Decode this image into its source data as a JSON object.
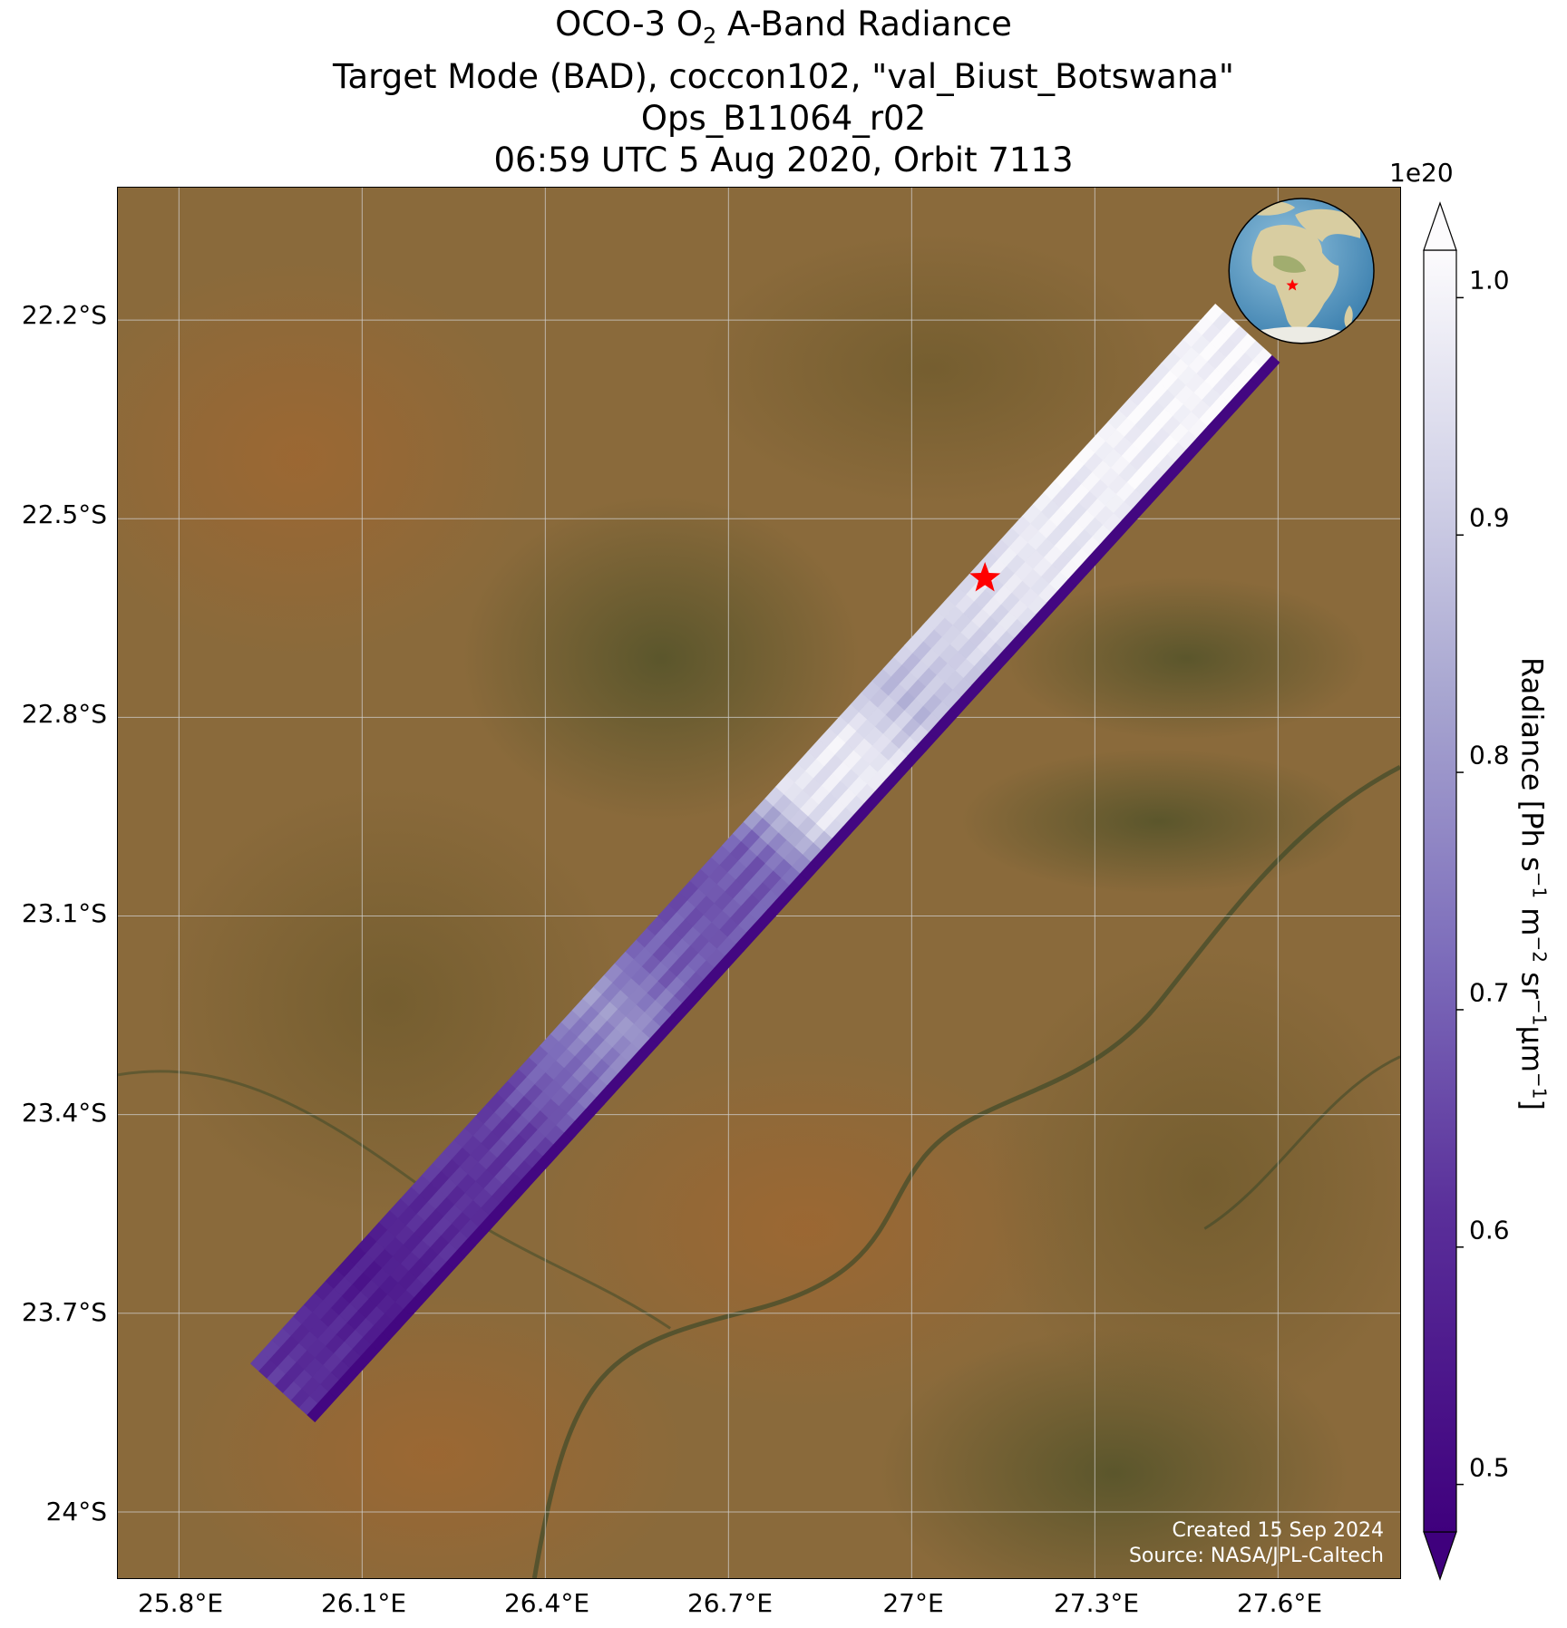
{
  "title": {
    "line1_pre": "OCO-3 O",
    "line1_sub": "2",
    "line1_post": " A-Band Radiance",
    "line2": "Target Mode (BAD), coccon102, \"val_Biust_Botswana\"",
    "line3": "Ops_B11064_r02",
    "line4": "06:59 UTC 5 Aug 2020, Orbit 7113"
  },
  "map": {
    "lat_ticks": [
      "22.2°S",
      "22.5°S",
      "22.8°S",
      "23.1°S",
      "23.4°S",
      "23.7°S",
      "24°S"
    ],
    "lon_ticks": [
      "25.8°E",
      "26.1°E",
      "26.4°E",
      "26.7°E",
      "27°E",
      "27.3°E",
      "27.6°E"
    ],
    "lat_range": [
      -24.1,
      -22.0
    ],
    "lon_range": [
      25.7,
      27.8
    ],
    "target": {
      "lat": -22.59,
      "lon": 27.12,
      "marker": "red-star"
    },
    "swath": {
      "start": {
        "lat": -23.82,
        "lon": 25.97
      },
      "end": {
        "lat": -22.22,
        "lon": 27.55
      },
      "radiance_profile": [
        0.62,
        0.6,
        0.56,
        0.6,
        0.62,
        0.65,
        0.72,
        0.8,
        0.7,
        0.68,
        0.7,
        0.96,
        0.98,
        0.88,
        0.92,
        0.96,
        0.98,
        0.99,
        1.0,
        1.0,
        1.0
      ]
    },
    "inset_globe": {
      "center_lat": -5,
      "center_lon": 20,
      "marker": "red-star"
    }
  },
  "credit": {
    "line1": "Created 15 Sep 2024",
    "line2": "Source: NASA/JPL-Caltech"
  },
  "colorbar": {
    "label_pre": "Radiance [Ph s",
    "exponent": "1e20",
    "ticks": [
      "1.0",
      "0.9",
      "0.8",
      "0.7",
      "0.6",
      "0.5"
    ],
    "range": [
      0.48,
      1.02
    ],
    "colors": {
      "low": "#3f007d",
      "mid": "#7d6dbb",
      "high": "#fcfbfd"
    }
  }
}
